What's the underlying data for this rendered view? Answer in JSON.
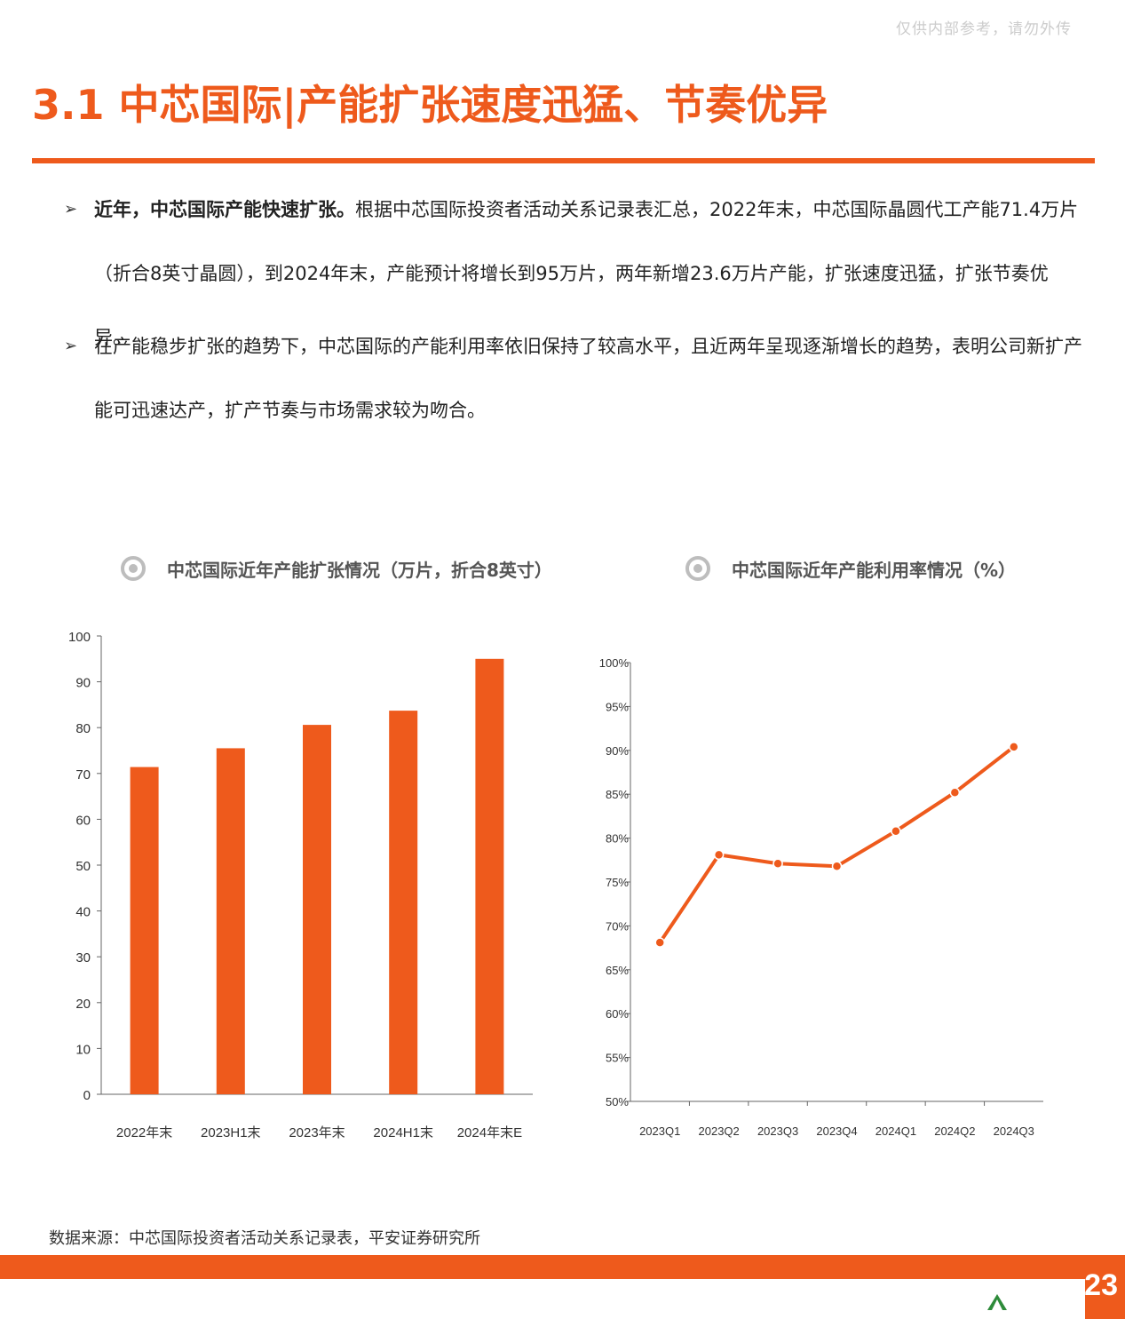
{
  "watermark": "仅供内部参考，请勿外传",
  "header": {
    "title": "3.1 中芯国际|产能扩张速度迅猛、节奏优异"
  },
  "bullets": [
    {
      "bold": "近年，中芯国际产能快速扩张。",
      "text": "根据中芯国际投资者活动关系记录表汇总，2022年末，中芯国际晶圆代工产能71.4万片（折合8英寸晶圆），到2024年末，产能预计将增长到95万片，两年新增23.6万片产能，扩张速度迅猛，扩张节奏优异。"
    },
    {
      "bold": "",
      "text": "在产能稳步扩张的趋势下，中芯国际的产能利用率依旧保持了较高水平，且近两年呈现逐渐增长的趋势，表明公司新扩产能可迅速达产，扩产节奏与市场需求较为吻合。"
    }
  ],
  "colors": {
    "accent": "#ee5a1c",
    "grey": "#bdbdbd"
  },
  "chart_data": [
    {
      "type": "bar",
      "title": "中芯国际近年产能扩张情况（万片，折合8英寸）",
      "categories": [
        "2022年末",
        "2023H1末",
        "2023年末",
        "2024H1末",
        "2024年末E"
      ],
      "values": [
        71.4,
        75.5,
        80.6,
        83.7,
        95
      ],
      "ylim": [
        0,
        100
      ],
      "yticks": [
        "0",
        "10",
        "20",
        "30",
        "40",
        "50",
        "60",
        "70",
        "80",
        "90",
        "100"
      ],
      "grid": false,
      "legend": "none",
      "color": "#ee5a1c"
    },
    {
      "type": "line",
      "title": "中芯国际近年产能利用率情况（%）",
      "categories": [
        "2023Q1",
        "2023Q2",
        "2023Q3",
        "2023Q4",
        "2024Q1",
        "2024Q2",
        "2024Q3"
      ],
      "values": [
        68.1,
        78.1,
        77.1,
        76.8,
        80.8,
        85.2,
        90.4
      ],
      "ylim": [
        50,
        100
      ],
      "yticks": [
        "50%",
        "55%",
        "60%",
        "65%",
        "70%",
        "75%",
        "80%",
        "85%",
        "90%",
        "95%",
        "100%"
      ],
      "grid": false,
      "legend": "none",
      "color": "#ee5a1c"
    }
  ],
  "source": "数据来源：中芯国际投资者活动关系记录表，平安证券研究所",
  "page_number": "23"
}
